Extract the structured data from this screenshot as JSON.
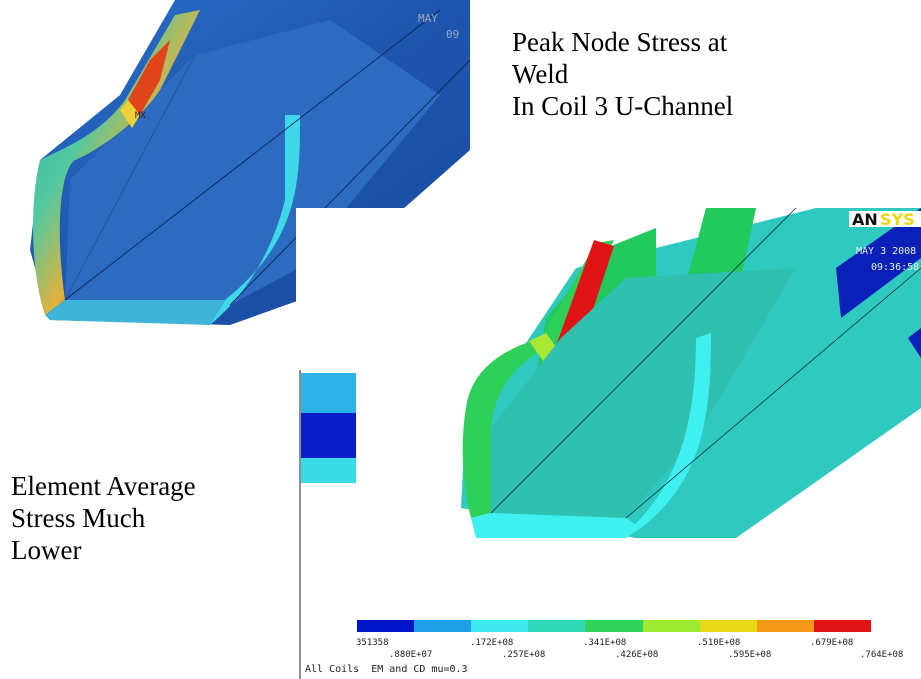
{
  "captions": {
    "top_right": [
      "Peak Node Stress at",
      "Weld",
      "In Coil 3 U-Channel"
    ],
    "left": [
      "Element Average",
      "Stress Much",
      "Lower"
    ]
  },
  "plot1": {
    "date_label": "MAY",
    "date_label_2": "09",
    "mx_marker": "MX"
  },
  "plot2": {
    "logo": "AN",
    "logo_tail": "SYS",
    "date": "MAY  3 2008",
    "time": "09:36:58",
    "legend_colors": [
      "#0015c8",
      "#1f9fe8",
      "#3fe9f0",
      "#2fd9b8",
      "#32d25c",
      "#9cea32",
      "#e9d818",
      "#f29a18",
      "#e01414"
    ],
    "legend_labels_top": [
      "351358",
      ".172E+08",
      ".341E+08",
      ".510E+08",
      ".679E+08"
    ],
    "legend_labels_bottom": [
      ".880E+07",
      ".257E+08",
      ".426E+08",
      ".595E+08",
      ".764E+08"
    ],
    "footer": "All Coils  EM and CD mu=0.3"
  }
}
